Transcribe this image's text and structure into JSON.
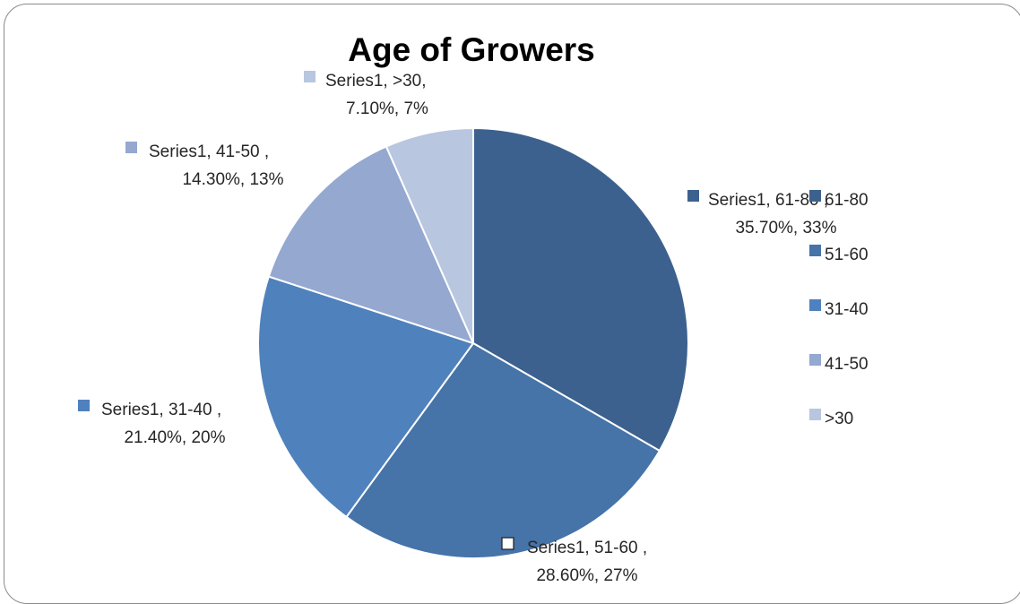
{
  "chart_data": {
    "type": "pie",
    "title": "Age of Growers",
    "slices": [
      {
        "category": "61-80",
        "series": "Series1",
        "value": 35.7,
        "percent": "33%",
        "color": "#3c618e",
        "label_lines": [
          "Series1, 61-80 ,",
          "35.70%, 33%"
        ]
      },
      {
        "category": "51-60",
        "series": "Series1",
        "value": 28.6,
        "percent": "27%",
        "color": "#4673a8",
        "label_lines": [
          "Series1, 51-60 ,",
          "28.60%, 27%"
        ]
      },
      {
        "category": "31-40",
        "series": "Series1",
        "value": 21.4,
        "percent": "20%",
        "color": "#4f81bd",
        "label_lines": [
          "Series1, 31-40 ,",
          "21.40%, 20%"
        ]
      },
      {
        "category": "41-50",
        "series": "Series1",
        "value": 14.3,
        "percent": "13%",
        "color": "#94a8d0",
        "label_lines": [
          "Series1, 41-50 ,",
          "14.30%, 13%"
        ]
      },
      {
        "category": ">30",
        "series": "Series1",
        "value": 7.1,
        "percent": "7%",
        "color": "#b9c6e0",
        "label_lines": [
          "Series1, >30,",
          "7.10%, 7%"
        ]
      }
    ],
    "legend": {
      "position": "right",
      "items": [
        {
          "label": "61-80",
          "color": "#3c618e"
        },
        {
          "label": "51-60",
          "color": "#4673a8"
        },
        {
          "label": "31-40",
          "color": "#4f81bd"
        },
        {
          "label": "41-50",
          "color": "#94a8d0"
        },
        {
          "label": ">30",
          "color": "#b9c6e0"
        }
      ]
    }
  }
}
